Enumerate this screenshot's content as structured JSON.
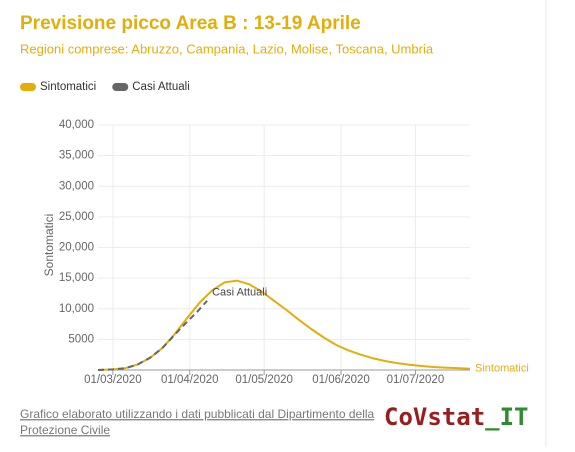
{
  "chart_data": {
    "type": "line",
    "title": "Previsione picco Area B : 13-19 Aprile",
    "subtitle": "Regioni comprese: Abruzzo, Campania, Lazio, Molise, Toscana, Umbria",
    "y_label": "Sontomatici",
    "legend": "top-left",
    "grid": true,
    "xlim": [
      "24/02/2020",
      "23/07/2020"
    ],
    "xticks": [
      "01/03/2020",
      "01/04/2020",
      "01/05/2020",
      "01/06/2020",
      "01/07/2020"
    ],
    "ylim": [
      0,
      40000
    ],
    "yticks": [
      {
        "value": 5000,
        "label": "5000"
      },
      {
        "value": 10000,
        "label": "10,000"
      },
      {
        "value": 15000,
        "label": "15,000"
      },
      {
        "value": 20000,
        "label": "20,000"
      },
      {
        "value": 25000,
        "label": "25,000"
      },
      {
        "value": 30000,
        "label": "30,000"
      },
      {
        "value": 35000,
        "label": "35,000"
      },
      {
        "value": 40000,
        "label": "40,000"
      }
    ],
    "series": [
      {
        "name": "Sintomatici",
        "color": "#e3ae0a",
        "dash": false,
        "x": [
          "24/02/2020",
          "01/03/2020",
          "06/03/2020",
          "11/03/2020",
          "16/03/2020",
          "21/03/2020",
          "26/03/2020",
          "31/03/2020",
          "05/04/2020",
          "10/04/2020",
          "15/04/2020",
          "20/04/2020",
          "25/04/2020",
          "30/04/2020",
          "05/05/2020",
          "10/05/2020",
          "15/05/2020",
          "20/05/2020",
          "25/05/2020",
          "30/05/2020",
          "04/06/2020",
          "09/06/2020",
          "14/06/2020",
          "19/06/2020",
          "24/06/2020",
          "29/06/2020",
          "04/07/2020",
          "09/07/2020",
          "14/07/2020",
          "19/07/2020",
          "23/07/2020"
        ],
        "values": [
          0,
          100,
          300,
          900,
          2000,
          3600,
          5900,
          8500,
          11000,
          13000,
          14300,
          14600,
          14000,
          12800,
          11300,
          9800,
          8200,
          6700,
          5300,
          4100,
          3200,
          2500,
          1900,
          1450,
          1100,
          830,
          630,
          480,
          370,
          280,
          220
        ]
      },
      {
        "name": "Casi Attuali",
        "color": "#666666",
        "dash": true,
        "x": [
          "24/02/2020",
          "01/03/2020",
          "06/03/2020",
          "11/03/2020",
          "16/03/2020",
          "21/03/2020",
          "26/03/2020",
          "31/03/2020",
          "04/04/2020",
          "08/04/2020"
        ],
        "values": [
          0,
          100,
          300,
          900,
          2000,
          3600,
          5800,
          7900,
          9500,
          11300
        ]
      }
    ],
    "footer": [
      "Grafico elaborato utilizzando i dati pubblicati dal Dipartimento della",
      "Protezione Civile"
    ],
    "logo": [
      "CoVstat",
      "_IT"
    ]
  }
}
